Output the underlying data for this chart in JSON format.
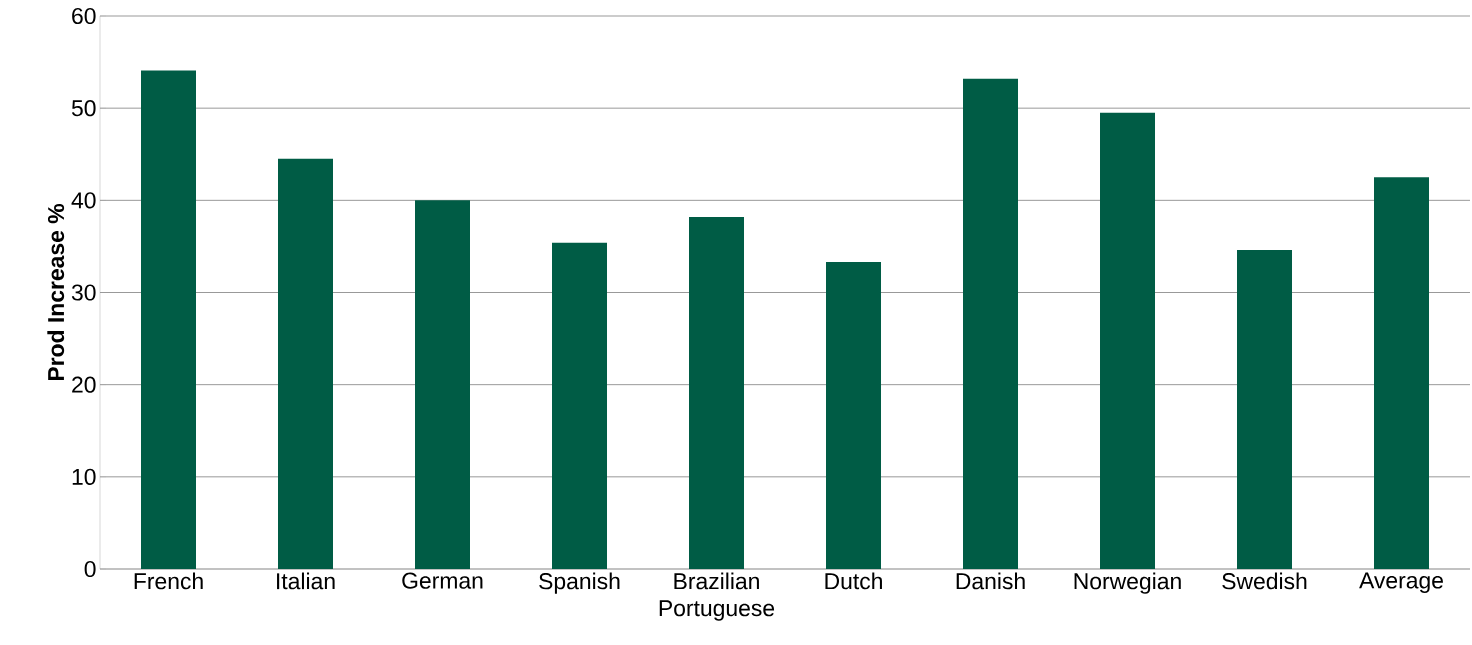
{
  "chart_data": {
    "type": "bar",
    "ylabel": "Prod Increase %",
    "categories": [
      "French",
      "Italian",
      "German",
      "Spanish",
      "Brazilian Portuguese",
      "Dutch",
      "Danish",
      "Norwegian",
      "Swedish",
      "Average"
    ],
    "values": [
      54.1,
      44.5,
      40.0,
      35.4,
      38.2,
      33.3,
      53.2,
      49.5,
      34.6,
      42.5
    ],
    "color": "#005c45",
    "ylim": [
      0,
      60
    ],
    "yticks": [
      0,
      10,
      20,
      30,
      40,
      50,
      60
    ],
    "grid": "y"
  }
}
